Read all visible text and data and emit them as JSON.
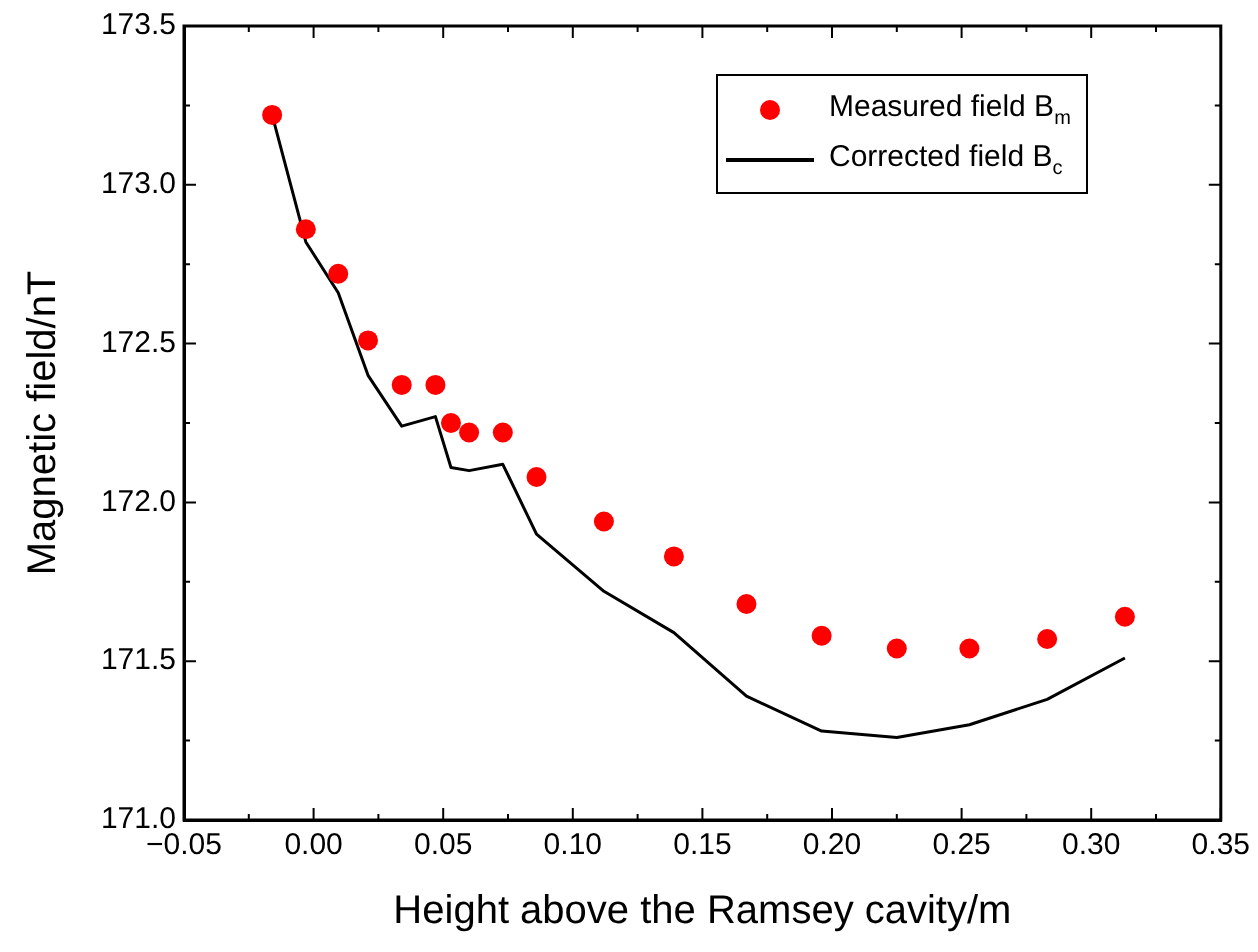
{
  "chart_data": {
    "type": "scatter",
    "xlabel": "Height above the Ramsey cavity/m",
    "ylabel": "Magnetic field/nT",
    "xlim": [
      -0.05,
      0.35
    ],
    "xticks": [
      {
        "value": -0.05,
        "label": "−0.05"
      },
      {
        "value": -0.025,
        "label": null
      },
      {
        "value": 0,
        "label": "0.00"
      },
      {
        "value": 0.025,
        "label": null
      },
      {
        "value": 0.05,
        "label": "0.05"
      },
      {
        "value": 0.075,
        "label": null
      },
      {
        "value": 0.1,
        "label": "0.10"
      },
      {
        "value": 0.125,
        "label": null
      },
      {
        "value": 0.15,
        "label": "0.15"
      },
      {
        "value": 0.175,
        "label": null
      },
      {
        "value": 0.2,
        "label": "0.20"
      },
      {
        "value": 0.225,
        "label": null
      },
      {
        "value": 0.25,
        "label": "0.25"
      },
      {
        "value": 0.275,
        "label": null
      },
      {
        "value": 0.3,
        "label": "0.30"
      },
      {
        "value": 0.325,
        "label": null
      },
      {
        "value": 0.35,
        "label": "0.35"
      }
    ],
    "ylim": [
      171.0,
      173.5
    ],
    "yticks": [
      {
        "value": 171,
        "label": "171.0"
      },
      {
        "value": 171.25,
        "label": null
      },
      {
        "value": 171.5,
        "label": "171.5"
      },
      {
        "value": 171.75,
        "label": null
      },
      {
        "value": 172,
        "label": "172.0"
      },
      {
        "value": 172.25,
        "label": null
      },
      {
        "value": 172.5,
        "label": "172.5"
      },
      {
        "value": 172.75,
        "label": null
      },
      {
        "value": 173,
        "label": "173.0"
      },
      {
        "value": 173.25,
        "label": null
      },
      {
        "value": 173.5,
        "label": "173.5"
      }
    ],
    "grid": false,
    "legend": "top right",
    "series": [
      {
        "name": "Measured field B$_{m}$",
        "type": "scatter",
        "marker": "circle",
        "color": "#ff0000",
        "x": [
          -0.016,
          -0.003,
          0.0095,
          0.021,
          0.034,
          0.047,
          0.053,
          0.06,
          0.073,
          0.086,
          0.112,
          0.139,
          0.167,
          0.196,
          0.225,
          0.253,
          0.283,
          0.313
        ],
        "values": [
          173.22,
          172.86,
          172.72,
          172.51,
          172.37,
          172.37,
          172.25,
          172.22,
          172.22,
          172.08,
          171.94,
          171.83,
          171.68,
          171.58,
          171.54,
          171.54,
          171.57,
          171.64
        ]
      },
      {
        "name": "Corrected field B$_{c}$",
        "type": "line",
        "marker": "none",
        "line_style": "solid",
        "color": "#000000",
        "x": [
          -0.016,
          -0.003,
          0.0095,
          0.021,
          0.034,
          0.047,
          0.053,
          0.06,
          0.073,
          0.086,
          0.112,
          0.139,
          0.167,
          0.196,
          0.225,
          0.253,
          0.283,
          0.313
        ],
        "values": [
          173.22,
          172.82,
          172.66,
          172.4,
          172.24,
          172.27,
          172.11,
          172.1,
          172.12,
          171.9,
          171.72,
          171.59,
          171.39,
          171.28,
          171.26,
          171.3,
          171.38,
          171.51
        ]
      }
    ]
  }
}
